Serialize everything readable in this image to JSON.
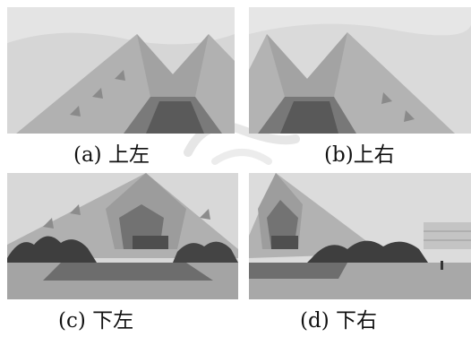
{
  "captions": {
    "top_left": "(a)  上左",
    "top_right": "(b)上右",
    "bottom_left": "(c)  下左",
    "bottom_right": "(d)  下右"
  },
  "colors": {
    "sky": "#d9d9d9",
    "building_light": "#b4b4b4",
    "building_dark": "#6e6e6e",
    "trees": "#3f3f3f",
    "ground": "#9e9e9e"
  }
}
